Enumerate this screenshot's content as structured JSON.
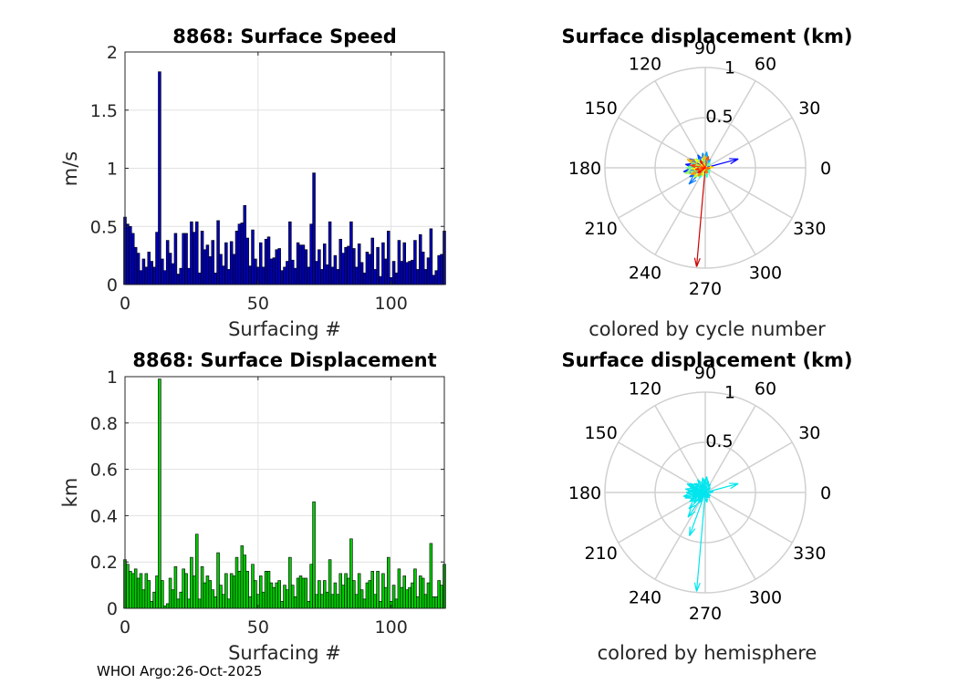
{
  "chart_data": [
    {
      "type": "bar",
      "title": "8868: Surface Speed",
      "xlabel": "Surfacing #",
      "ylabel": "m/s",
      "xlim": [
        0,
        120
      ],
      "ylim": [
        0,
        2
      ],
      "xticks": [
        "0",
        "50",
        "100"
      ],
      "yticks": [
        "0",
        "0.5",
        "1",
        "1.5",
        "2"
      ],
      "grid": true,
      "color": "#0000b4",
      "values": [
        0.58,
        0.52,
        0.5,
        0.44,
        0.32,
        0.27,
        0.12,
        0.22,
        0.15,
        0.28,
        0.2,
        0.15,
        0.45,
        1.83,
        0.22,
        0.12,
        0.38,
        0.27,
        0.18,
        0.44,
        0.09,
        0.14,
        0.44,
        0.44,
        0.14,
        0.54,
        0.45,
        0.54,
        0.1,
        0.46,
        0.3,
        0.34,
        0.24,
        0.38,
        0.1,
        0.55,
        0.26,
        0.16,
        0.36,
        0.13,
        0.37,
        0.26,
        0.46,
        0.52,
        0.53,
        0.68,
        0.4,
        0.16,
        0.47,
        0.22,
        0.15,
        0.36,
        0.15,
        0.39,
        0.41,
        0.22,
        0.23,
        0.3,
        0.31,
        0.12,
        0.15,
        0.2,
        0.54,
        0.21,
        0.14,
        0.36,
        0.34,
        0.34,
        0.3,
        0.15,
        0.52,
        0.96,
        0.2,
        0.3,
        0.13,
        0.35,
        0.17,
        0.54,
        0.15,
        0.25,
        0.13,
        0.39,
        0.27,
        0.32,
        0.33,
        0.54,
        0.31,
        0.15,
        0.35,
        0.19,
        0.1,
        0.28,
        0.26,
        0.4,
        0.13,
        0.32,
        0.07,
        0.36,
        0.22,
        0.46,
        0.06,
        0.2,
        0.1,
        0.38,
        0.2,
        0.36,
        0.19,
        0.2,
        0.21,
        0.38,
        0.13,
        0.43,
        0.28,
        0.13,
        0.23,
        0.48,
        0.08,
        0.12,
        0.25,
        0.26,
        0.46
      ]
    },
    {
      "type": "bar",
      "title": "8868: Surface Displacement",
      "xlabel": "Surfacing #",
      "ylabel": "km",
      "xlim": [
        0,
        120
      ],
      "ylim": [
        0,
        1
      ],
      "xticks": [
        "0",
        "50",
        "100"
      ],
      "yticks": [
        "0",
        "0.2",
        "0.4",
        "0.6",
        "0.8",
        "1"
      ],
      "grid": true,
      "color": "#00cc00",
      "values": [
        0.21,
        0.19,
        0.16,
        0.15,
        0.17,
        0.13,
        0.15,
        0.08,
        0.15,
        0.12,
        0.03,
        0.07,
        0.14,
        0.99,
        0.12,
        0.01,
        0.02,
        0.13,
        0.08,
        0.18,
        0.04,
        0.07,
        0.17,
        0.15,
        0.04,
        0.22,
        0.14,
        0.32,
        0.04,
        0.18,
        0.11,
        0.14,
        0.12,
        0.08,
        0.05,
        0.24,
        0.1,
        0.06,
        0.15,
        0.04,
        0.15,
        0.14,
        0.22,
        0.16,
        0.27,
        0.23,
        0.16,
        0.05,
        0.19,
        0.12,
        0.06,
        0.14,
        0.07,
        0.16,
        0.16,
        0.11,
        0.09,
        0.11,
        0.12,
        0.03,
        0.1,
        0.08,
        0.22,
        0.1,
        0.05,
        0.13,
        0.14,
        0.13,
        0.13,
        0.03,
        0.19,
        0.46,
        0.06,
        0.12,
        0.06,
        0.12,
        0.07,
        0.21,
        0.06,
        0.11,
        0.06,
        0.15,
        0.1,
        0.15,
        0.13,
        0.3,
        0.12,
        0.06,
        0.15,
        0.08,
        0.04,
        0.11,
        0.12,
        0.16,
        0.06,
        0.16,
        0.03,
        0.15,
        0.09,
        0.22,
        0.03,
        0.1,
        0.04,
        0.17,
        0.09,
        0.14,
        0.08,
        0.09,
        0.11,
        0.17,
        0.05,
        0.14,
        0.13,
        0.06,
        0.11,
        0.28,
        0.05,
        0.05,
        0.12,
        0.1,
        0.19
      ]
    },
    {
      "type": "polar-vectors",
      "title": "Surface displacement (km)",
      "caption": "colored by cycle number",
      "rmax": 1,
      "rticks": [
        "0.5",
        "1"
      ],
      "angle_labels": [
        "0",
        "30",
        "60",
        "90",
        "120",
        "150",
        "180",
        "210",
        "240",
        "270",
        "300",
        "330"
      ],
      "coloring": "cycle",
      "vectors": [
        {
          "angle": 265,
          "r": 0.99
        },
        {
          "angle": 15,
          "r": 0.34
        },
        {
          "angle": 170,
          "r": 0.2
        },
        {
          "angle": 190,
          "r": 0.22
        },
        {
          "angle": 150,
          "r": 0.18
        },
        {
          "angle": 120,
          "r": 0.15
        },
        {
          "angle": 210,
          "r": 0.18
        },
        {
          "angle": 225,
          "r": 0.23
        },
        {
          "angle": 100,
          "r": 0.15
        },
        {
          "angle": 85,
          "r": 0.16
        },
        {
          "angle": 60,
          "r": 0.1
        },
        {
          "angle": 175,
          "r": 0.17
        },
        {
          "angle": 200,
          "r": 0.14
        },
        {
          "angle": 160,
          "r": 0.16
        },
        {
          "angle": 135,
          "r": 0.13
        },
        {
          "angle": 240,
          "r": 0.12
        },
        {
          "angle": 280,
          "r": 0.1
        },
        {
          "angle": 310,
          "r": 0.07
        },
        {
          "angle": 330,
          "r": 0.06
        },
        {
          "angle": 45,
          "r": 0.07
        },
        {
          "angle": 180,
          "r": 0.19
        },
        {
          "angle": 195,
          "r": 0.21
        },
        {
          "angle": 165,
          "r": 0.12
        },
        {
          "angle": 110,
          "r": 0.1
        },
        {
          "angle": 220,
          "r": 0.15
        },
        {
          "angle": 250,
          "r": 0.09
        },
        {
          "angle": 140,
          "r": 0.14
        },
        {
          "angle": 185,
          "r": 0.13
        },
        {
          "angle": 5,
          "r": 0.08
        },
        {
          "angle": 95,
          "r": 0.13
        },
        {
          "angle": 155,
          "r": 0.2
        },
        {
          "angle": 205,
          "r": 0.16
        },
        {
          "angle": 230,
          "r": 0.11
        },
        {
          "angle": 290,
          "r": 0.06
        },
        {
          "angle": 350,
          "r": 0.05
        },
        {
          "angle": 75,
          "r": 0.12
        },
        {
          "angle": 170,
          "r": 0.15
        },
        {
          "angle": 190,
          "r": 0.1
        },
        {
          "angle": 125,
          "r": 0.09
        },
        {
          "angle": 215,
          "r": 0.09
        }
      ]
    },
    {
      "type": "polar-vectors",
      "title": "Surface displacement (km)",
      "caption": "colored by hemisphere",
      "rmax": 1,
      "rticks": [
        "0.5",
        "1"
      ],
      "angle_labels": [
        "0",
        "30",
        "60",
        "90",
        "120",
        "150",
        "180",
        "210",
        "240",
        "270",
        "300",
        "330"
      ],
      "coloring": "hemisphere",
      "color": "#00e5ee",
      "vectors": [
        {
          "angle": 265,
          "r": 0.99
        },
        {
          "angle": 15,
          "r": 0.34
        },
        {
          "angle": 250,
          "r": 0.46
        },
        {
          "angle": 170,
          "r": 0.2
        },
        {
          "angle": 190,
          "r": 0.22
        },
        {
          "angle": 150,
          "r": 0.18
        },
        {
          "angle": 120,
          "r": 0.15
        },
        {
          "angle": 210,
          "r": 0.18
        },
        {
          "angle": 225,
          "r": 0.23
        },
        {
          "angle": 100,
          "r": 0.15
        },
        {
          "angle": 85,
          "r": 0.16
        },
        {
          "angle": 60,
          "r": 0.1
        },
        {
          "angle": 175,
          "r": 0.17
        },
        {
          "angle": 200,
          "r": 0.14
        },
        {
          "angle": 160,
          "r": 0.16
        },
        {
          "angle": 135,
          "r": 0.13
        },
        {
          "angle": 240,
          "r": 0.12
        },
        {
          "angle": 280,
          "r": 0.1
        },
        {
          "angle": 310,
          "r": 0.07
        },
        {
          "angle": 330,
          "r": 0.06
        },
        {
          "angle": 45,
          "r": 0.07
        },
        {
          "angle": 180,
          "r": 0.19
        },
        {
          "angle": 195,
          "r": 0.21
        },
        {
          "angle": 165,
          "r": 0.12
        },
        {
          "angle": 110,
          "r": 0.1
        },
        {
          "angle": 220,
          "r": 0.15
        },
        {
          "angle": 140,
          "r": 0.14
        },
        {
          "angle": 185,
          "r": 0.13
        },
        {
          "angle": 5,
          "r": 0.08
        },
        {
          "angle": 95,
          "r": 0.13
        },
        {
          "angle": 155,
          "r": 0.2
        },
        {
          "angle": 205,
          "r": 0.16
        },
        {
          "angle": 230,
          "r": 0.11
        },
        {
          "angle": 290,
          "r": 0.06
        },
        {
          "angle": 75,
          "r": 0.12
        },
        {
          "angle": 170,
          "r": 0.15
        },
        {
          "angle": 190,
          "r": 0.1
        },
        {
          "angle": 125,
          "r": 0.09
        },
        {
          "angle": 215,
          "r": 0.09
        },
        {
          "angle": 235,
          "r": 0.3
        }
      ]
    }
  ],
  "footer": "WHOI Argo:26-Oct-2025"
}
